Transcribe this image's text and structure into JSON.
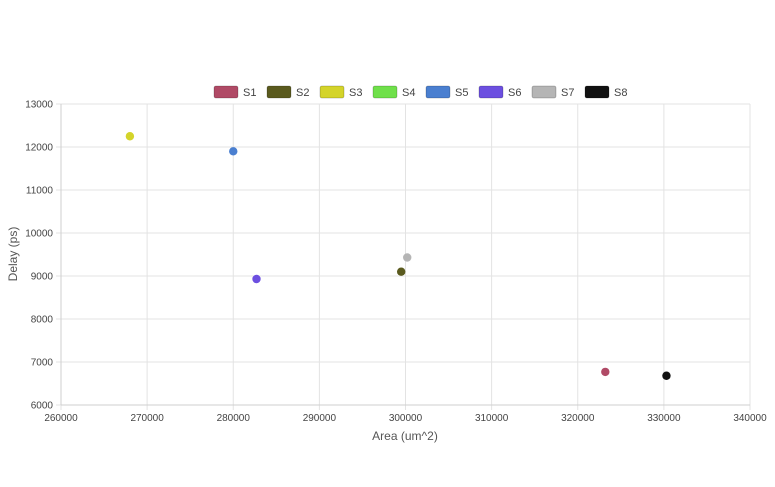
{
  "chart_data": {
    "type": "scatter",
    "title": "",
    "xlabel": "Area (um^2)",
    "ylabel": "Delay (ps)",
    "xlim": [
      260000,
      340000
    ],
    "ylim": [
      6000,
      13000
    ],
    "xticks": [
      260000,
      270000,
      280000,
      290000,
      300000,
      310000,
      320000,
      330000,
      340000
    ],
    "yticks": [
      6000,
      7000,
      8000,
      9000,
      10000,
      11000,
      12000,
      13000
    ],
    "grid": true,
    "legend_position": "top",
    "series": [
      {
        "name": "S1",
        "color": "#b04a66",
        "points": [
          {
            "x": 323200,
            "y": 6770
          }
        ]
      },
      {
        "name": "S2",
        "color": "#5a5a1e",
        "points": [
          {
            "x": 299500,
            "y": 9100
          }
        ]
      },
      {
        "name": "S3",
        "color": "#d4d42a",
        "points": [
          {
            "x": 268000,
            "y": 12250
          }
        ]
      },
      {
        "name": "S4",
        "color": "#6fe04a",
        "points": []
      },
      {
        "name": "S5",
        "color": "#4a7fd0",
        "points": [
          {
            "x": 280000,
            "y": 11900
          }
        ]
      },
      {
        "name": "S6",
        "color": "#6c4fe0",
        "points": [
          {
            "x": 282700,
            "y": 8930
          }
        ]
      },
      {
        "name": "S7",
        "color": "#b5b5b5",
        "points": [
          {
            "x": 300200,
            "y": 9430
          }
        ]
      },
      {
        "name": "S8",
        "color": "#111111",
        "points": [
          {
            "x": 330300,
            "y": 6680
          }
        ]
      }
    ]
  }
}
